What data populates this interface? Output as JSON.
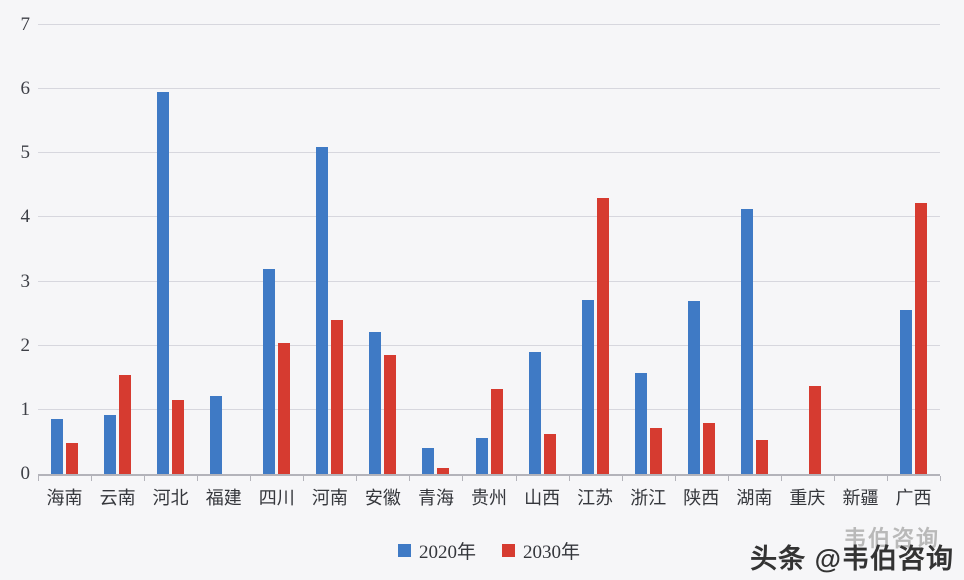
{
  "chart_data": {
    "type": "bar",
    "categories": [
      "海南",
      "云南",
      "河北",
      "福建",
      "四川",
      "河南",
      "安徽",
      "青海",
      "贵州",
      "山西",
      "江苏",
      "浙江",
      "陕西",
      "湖南",
      "重庆",
      "新疆",
      "广西"
    ],
    "series": [
      {
        "name": "2020年",
        "color": "#3F7AC5",
        "values": [
          0.86,
          0.92,
          5.95,
          1.21,
          3.2,
          5.1,
          2.22,
          0.4,
          0.56,
          1.91,
          2.72,
          1.57,
          2.69,
          4.13,
          0,
          0,
          2.56
        ]
      },
      {
        "name": "2030年",
        "color": "#D63B30",
        "values": [
          0.48,
          1.55,
          1.16,
          0,
          2.05,
          2.4,
          1.85,
          0.1,
          1.33,
          0.63,
          4.3,
          0.72,
          0.79,
          0.53,
          1.37,
          0,
          4.22
        ]
      }
    ],
    "ylim": [
      0,
      7
    ],
    "y_ticks": [
      0,
      1,
      2,
      3,
      4,
      5,
      6,
      7
    ],
    "grid": "horizontal",
    "legend_position": "bottom",
    "colors": {
      "series_2020": "#3F7AC5",
      "series_2030": "#D63B30",
      "gridline": "#d7d7de",
      "background": "#f6f6f8"
    }
  },
  "watermark": {
    "ghost": "韦伯咨询",
    "text": "头条 @韦伯咨询"
  }
}
